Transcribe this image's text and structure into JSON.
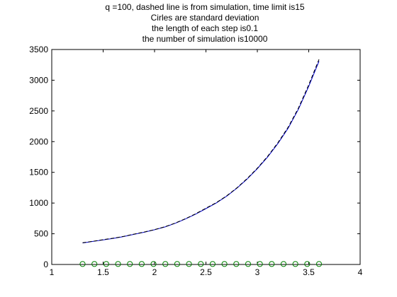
{
  "chart_data": {
    "type": "line",
    "title_lines": [
      "q =100, dashed line is from simulation, time limit is15",
      "Cirles are standard deviation",
      "the length of each step is0.1",
      "the number of simulation is10000"
    ],
    "xlabel": "",
    "ylabel": "",
    "xlim": [
      1,
      4
    ],
    "ylim": [
      0,
      3500
    ],
    "x_ticks": [
      1,
      1.5,
      2,
      2.5,
      3,
      3.5,
      4
    ],
    "x_tick_labels": [
      "1",
      "1.5",
      "2",
      "2.5",
      "3",
      "3.5",
      "4"
    ],
    "y_ticks": [
      0,
      500,
      1000,
      1500,
      2000,
      2500,
      3000,
      3500
    ],
    "y_tick_labels": [
      "0",
      "500",
      "1000",
      "1500",
      "2000",
      "2500",
      "3000",
      "3500"
    ],
    "grid": false,
    "legend": "none",
    "series": [
      {
        "style": "solid",
        "color": "#0000cc",
        "x": [
          1.3,
          1.4,
          1.5,
          1.6,
          1.7,
          1.8,
          1.9,
          2.0,
          2.1,
          2.2,
          2.3,
          2.4,
          2.5,
          2.6,
          2.7,
          2.8,
          2.9,
          3.0,
          3.1,
          3.2,
          3.3,
          3.4,
          3.5,
          3.6
        ],
        "y": [
          350,
          375,
          400,
          425,
          455,
          490,
          525,
          565,
          610,
          670,
          740,
          820,
          910,
          1000,
          1110,
          1240,
          1390,
          1560,
          1750,
          1970,
          2220,
          2530,
          2900,
          3310
        ]
      },
      {
        "style": "dashed",
        "color": "#000000",
        "x": [
          1.3,
          1.4,
          1.5,
          1.6,
          1.7,
          1.8,
          1.9,
          2.0,
          2.1,
          2.2,
          2.3,
          2.4,
          2.5,
          2.6,
          2.7,
          2.8,
          2.9,
          3.0,
          3.1,
          3.2,
          3.3,
          3.4,
          3.5,
          3.6
        ],
        "y": [
          355,
          378,
          404,
          428,
          458,
          494,
          528,
          568,
          614,
          674,
          745,
          826,
          916,
          1006,
          1116,
          1246,
          1398,
          1568,
          1760,
          1982,
          2236,
          2548,
          2925,
          3340
        ]
      },
      {
        "style": "circles",
        "color": "#008000",
        "x": [
          1.3,
          1.415,
          1.53,
          1.645,
          1.76,
          1.875,
          1.99,
          2.105,
          2.22,
          2.335,
          2.45,
          2.565,
          2.68,
          2.795,
          2.91,
          3.025,
          3.14,
          3.255,
          3.37,
          3.485,
          3.6
        ],
        "y": [
          8,
          8,
          8,
          8,
          8,
          8,
          8,
          8,
          8,
          8,
          8,
          8,
          8,
          8,
          8,
          8,
          8,
          8,
          8,
          8,
          8
        ]
      }
    ]
  }
}
